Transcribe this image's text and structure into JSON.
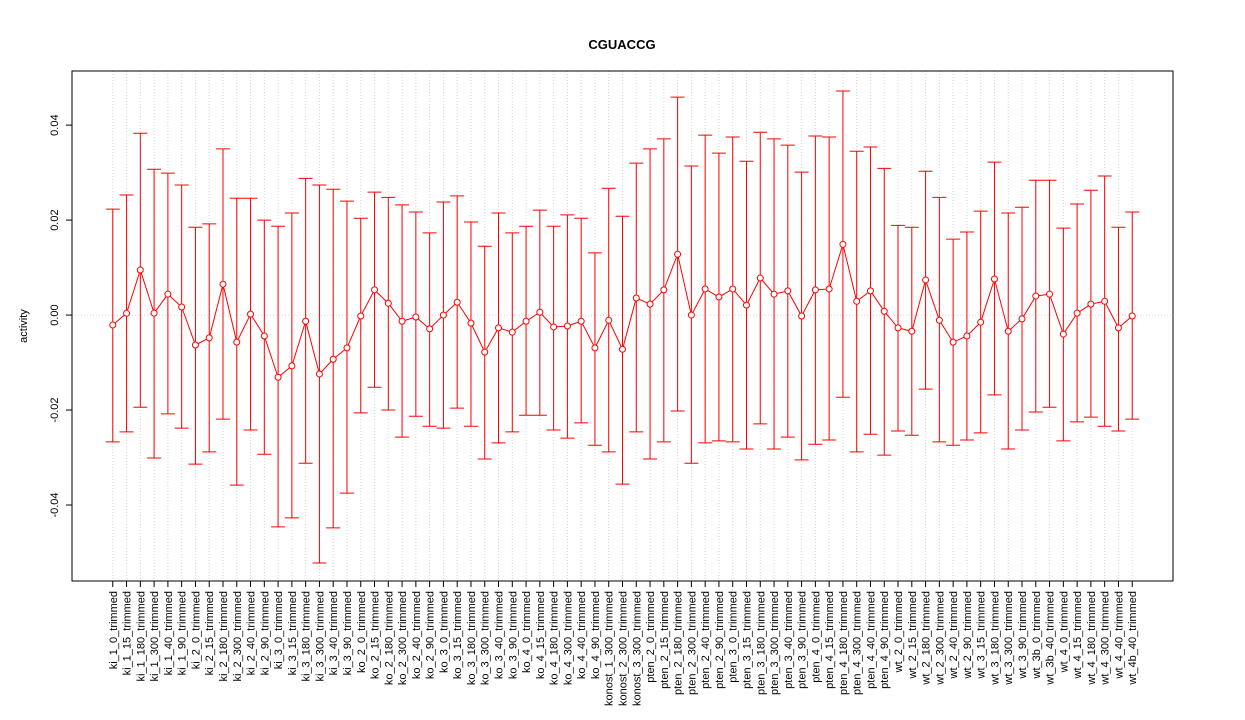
{
  "chart_data": {
    "type": "errorbar_line",
    "title": "CGUACCG",
    "y_label": "activity",
    "categories": [
      "ki_1_0_trimmed",
      "ki_1_15_trimmed",
      "ki_1_180_trimmed",
      "ki_1_300_trimmed",
      "ki_1_40_trimmed",
      "ki_1_90_trimmed",
      "ki_2_0_trimmed",
      "ki_2_15_trimmed",
      "ki_2_180_trimmed",
      "ki_2_300_trimmed",
      "ki_2_40_trimmed",
      "ki_2_90_trimmed",
      "ki_3_0_trimmed",
      "ki_3_15_trimmed",
      "ki_3_180_trimmed",
      "ki_3_300_trimmed",
      "ki_3_40_trimmed",
      "ki_3_90_trimmed",
      "ko_2_0_trimmed",
      "ko_2_15_trimmed",
      "ko_2_180_trimmed",
      "ko_2_300_trimmed",
      "ko_2_40_trimmed",
      "ko_2_90_trimmed",
      "ko_3_0_trimmed",
      "ko_3_15_trimmed",
      "ko_3_180_trimmed",
      "ko_3_300_trimmed",
      "ko_3_40_trimmed",
      "ko_3_90_trimmed",
      "ko_4_0_trimmed",
      "ko_4_15_trimmed",
      "ko_4_180_trimmed",
      "ko_4_300_trimmed",
      "ko_4_40_trimmed",
      "ko_4_90_trimmed",
      "konost_1_300_trimmed",
      "konost_2_300_trimmed",
      "konost_3_300_trimmed",
      "pten_2_0_trimmed",
      "pten_2_15_trimmed",
      "pten_2_180_trimmed",
      "pten_2_300_trimmed",
      "pten_2_40_trimmed",
      "pten_2_90_trimmed",
      "pten_3_0_trimmed",
      "pten_3_15_trimmed",
      "pten_3_180_trimmed",
      "pten_3_300_trimmed",
      "pten_3_40_trimmed",
      "pten_3_90_trimmed",
      "pten_4_0_trimmed",
      "pten_4_15_trimmed",
      "pten_4_180_trimmed",
      "pten_4_300_trimmed",
      "pten_4_40_trimmed",
      "pten_4_90_trimmed",
      "wt_2_0_trimmed",
      "wt_2_15_trimmed",
      "wt_2_180_trimmed",
      "wt_2_300_trimmed",
      "wt_2_40_trimmed",
      "wt_2_90_trimmed",
      "wt_3_15_trimmed",
      "wt_3_180_trimmed",
      "wt_3_300_trimmed",
      "wt_3_90_trimmed",
      "wt_3b_0_trimmed",
      "wt_3b_40_trimmed",
      "wt_4_0_trimmed",
      "wt_4_15_trimmed",
      "wt_4_180_trimmed",
      "wt_4_300_trimmed",
      "wt_4_40_trimmed",
      "wt_4b_40_trimmed"
    ],
    "values": [
      -0.0021,
      0.0004,
      0.0095,
      0.0004,
      0.0044,
      0.0017,
      -0.0063,
      -0.0048,
      0.0065,
      -0.0057,
      0.0002,
      -0.0044,
      -0.0131,
      -0.0107,
      -0.0013,
      -0.0124,
      -0.0093,
      -0.0069,
      -0.0002,
      0.0053,
      0.0025,
      -0.0013,
      -0.0004,
      -0.0029,
      0,
      0.0027,
      -0.0017,
      -0.0078,
      -0.0027,
      -0.0036,
      -0.0013,
      0.0006,
      -0.0025,
      -0.0023,
      -0.0013,
      -0.0069,
      -0.0011,
      -0.0072,
      0.0036,
      0.0023,
      0.0053,
      0.0128,
      0,
      0.0055,
      0.0038,
      0.0055,
      0.0021,
      0.0078,
      0.0044,
      0.0051,
      -0.0002,
      0.0053,
      0.0055,
      0.0149,
      0.0029,
      0.0051,
      0.0008,
      -0.0027,
      -0.0034,
      0.0074,
      -0.0011,
      -0.0057,
      -0.0044,
      -0.0015,
      0.0076,
      -0.0034,
      -0.0008,
      0.004,
      0.0044,
      -0.004,
      0.0004,
      0.0023,
      0.0029,
      -0.0027,
      -0.0002
    ],
    "upper": [
      0.0223,
      0.0253,
      0.0383,
      0.0307,
      0.0299,
      0.0274,
      0.0185,
      0.0192,
      0.035,
      0.0246,
      0.0246,
      0.02,
      0.0187,
      0.0215,
      0.0288,
      0.0274,
      0.0265,
      0.024,
      0.0204,
      0.0259,
      0.0248,
      0.0232,
      0.0217,
      0.0173,
      0.0238,
      0.0251,
      0.0196,
      0.0145,
      0.0215,
      0.0173,
      0.0187,
      0.0221,
      0.0187,
      0.0211,
      0.0204,
      0.0131,
      0.0267,
      0.0208,
      0.032,
      0.035,
      0.0371,
      0.0459,
      0.0314,
      0.0379,
      0.0341,
      0.0375,
      0.0324,
      0.0385,
      0.0371,
      0.0358,
      0.0301,
      0.0377,
      0.0375,
      0.0472,
      0.0345,
      0.0354,
      0.0309,
      0.0189,
      0.0185,
      0.0303,
      0.0248,
      0.016,
      0.0175,
      0.0219,
      0.0322,
      0.0215,
      0.0227,
      0.0284,
      0.0284,
      0.0183,
      0.0234,
      0.0263,
      0.0293,
      0.0185,
      0.0217
    ],
    "lower": [
      -0.0267,
      -0.0246,
      -0.0194,
      -0.0301,
      -0.0208,
      -0.0238,
      -0.0314,
      -0.0288,
      -0.0219,
      -0.0358,
      -0.0242,
      -0.0293,
      -0.0446,
      -0.0427,
      -0.0312,
      -0.0522,
      -0.0448,
      -0.0375,
      -0.0206,
      -0.0152,
      -0.02,
      -0.0257,
      -0.0213,
      -0.0234,
      -0.0238,
      -0.0196,
      -0.0234,
      -0.0303,
      -0.0269,
      -0.0246,
      -0.0211,
      -0.0211,
      -0.0242,
      -0.0259,
      -0.0227,
      -0.0274,
      -0.0288,
      -0.0356,
      -0.0246,
      -0.0303,
      -0.0267,
      -0.0202,
      -0.0312,
      -0.0269,
      -0.0265,
      -0.0267,
      -0.0282,
      -0.0229,
      -0.0282,
      -0.0257,
      -0.0305,
      -0.0272,
      -0.0263,
      -0.0173,
      -0.0288,
      -0.0251,
      -0.0295,
      -0.0244,
      -0.0253,
      -0.0156,
      -0.0267,
      -0.0274,
      -0.0263,
      -0.0248,
      -0.0168,
      -0.0282,
      -0.0242,
      -0.0204,
      -0.0194,
      -0.0265,
      -0.0225,
      -0.0215,
      -0.0234,
      -0.0244,
      -0.0219
    ],
    "color": "#ff0000",
    "ylim": [
      -0.056,
      0.0514
    ],
    "yticks": [
      -0.04,
      -0.02,
      {
        "value": 0,
        "label": "0.00"
      },
      0.02,
      0.04
    ],
    "grid": true,
    "reference_line": 0
  }
}
